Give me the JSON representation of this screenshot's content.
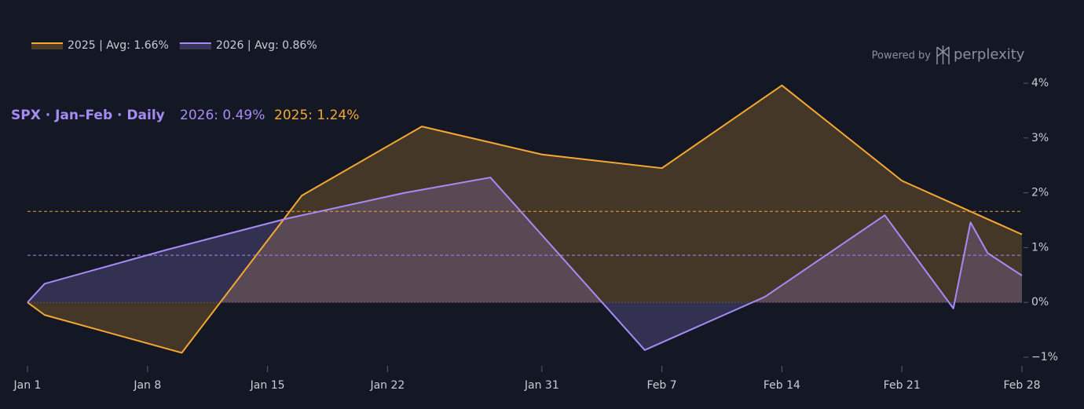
{
  "chart_data": {
    "type": "line",
    "header": "SPX · Jan–Feb · Daily",
    "header_values": [
      "2026: 0.49%",
      "2025: 1.24%"
    ],
    "credit": "Powered by",
    "brand": "perplexity",
    "series": [
      {
        "name": "2025 | Avg: 1.66%",
        "color": "#f5a833",
        "avg": 1.66,
        "x": [
          "Jan 1",
          "Jan 2",
          "Jan 10",
          "Jan 17",
          "Jan 24",
          "Jan 31",
          "Feb 7",
          "Feb 14",
          "Feb 21",
          "Feb 28"
        ],
        "values": [
          0,
          -0.23,
          -0.92,
          1.95,
          3.21,
          2.7,
          2.45,
          3.96,
          2.22,
          1.24
        ]
      },
      {
        "name": "2026 | Avg: 0.86%",
        "color": "#a68bf5",
        "avg": 0.86,
        "x": [
          "Jan 1",
          "Jan 2",
          "Jan 9",
          "Jan 16",
          "Jan 23",
          "Jan 28",
          "Feb 6",
          "Feb 13",
          "Feb 20",
          "Feb 24",
          "Feb 25",
          "Feb 26",
          "Feb 28"
        ],
        "values": [
          0,
          0.34,
          0.95,
          1.52,
          2.0,
          2.28,
          -0.87,
          0.1,
          1.59,
          -0.11,
          1.46,
          0.9,
          0.49
        ]
      }
    ],
    "xlim": [
      "Jan 1",
      "Feb 28"
    ],
    "xticks": [
      "Jan 1",
      "Jan 8",
      "Jan 15",
      "Jan 22",
      "Jan 31",
      "Feb 7",
      "Feb 14",
      "Feb 21",
      "Feb 28"
    ],
    "ylim": [
      -1,
      4
    ],
    "yticks": [
      {
        "value": -1,
        "label": "−1%"
      },
      {
        "value": 0,
        "label": "0%"
      },
      {
        "value": 1,
        "label": "1%"
      },
      {
        "value": 2,
        "label": "2%"
      },
      {
        "value": 3,
        "label": "3%"
      },
      {
        "value": 4,
        "label": "4%"
      }
    ]
  }
}
